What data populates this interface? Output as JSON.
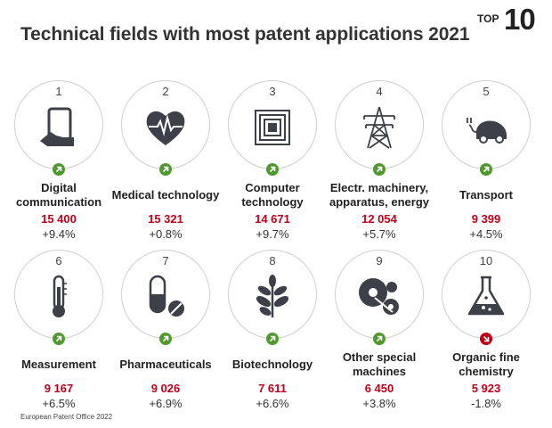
{
  "title": "Technical fields with most patent applications 2021",
  "badge": {
    "top_word": "TOP",
    "top_num": "10"
  },
  "source": "European Patent Office 2022",
  "colors": {
    "increase": "#4f9a2c",
    "decrease": "#c0001a",
    "value": "#c0001a",
    "icon": "#3d4048"
  },
  "chart_data": {
    "type": "table",
    "title": "Technical fields with most patent applications 2021",
    "fields": [
      {
        "rank": "1",
        "label": "Digital communication",
        "value": 15400,
        "value_text": "15 400",
        "change": 9.4,
        "change_text": "+9.4%",
        "trend": "up",
        "icon": "tablet-touch-icon"
      },
      {
        "rank": "2",
        "label": "Medical technology",
        "value": 15321,
        "value_text": "15 321",
        "change": 0.8,
        "change_text": "+0.8%",
        "trend": "up",
        "icon": "heart-pulse-icon"
      },
      {
        "rank": "3",
        "label": "Computer technology",
        "value": 14671,
        "value_text": "14 671",
        "change": 9.7,
        "change_text": "+9.7%",
        "trend": "up",
        "icon": "chip-icon"
      },
      {
        "rank": "4",
        "label": "Electr. machinery, apparatus, energy",
        "value": 12054,
        "value_text": "12 054",
        "change": 5.7,
        "change_text": "+5.7%",
        "trend": "up",
        "icon": "power-pylon-icon"
      },
      {
        "rank": "5",
        "label": "Transport",
        "value": 9399,
        "value_text": "9 399",
        "change": 4.5,
        "change_text": "+4.5%",
        "trend": "up",
        "icon": "electric-car-icon"
      },
      {
        "rank": "6",
        "label": "Measurement",
        "value": 9167,
        "value_text": "9 167",
        "change": 6.5,
        "change_text": "+6.5%",
        "trend": "up",
        "icon": "thermometer-icon"
      },
      {
        "rank": "7",
        "label": "Pharmaceuticals",
        "value": 9026,
        "value_text": "9 026",
        "change": 6.9,
        "change_text": "+6.9%",
        "trend": "up",
        "icon": "pills-icon"
      },
      {
        "rank": "8",
        "label": "Biotechnology",
        "value": 7611,
        "value_text": "7 611",
        "change": 6.6,
        "change_text": "+6.6%",
        "trend": "up",
        "icon": "leaf-icon"
      },
      {
        "rank": "9",
        "label": "Other special machines",
        "value": 6450,
        "value_text": "6 450",
        "change": 3.8,
        "change_text": "+3.8%",
        "trend": "up",
        "icon": "saw-blades-icon"
      },
      {
        "rank": "10",
        "label": "Organic fine chemistry",
        "value": 5923,
        "value_text": "5 923",
        "change": -1.8,
        "change_text": "-1.8%",
        "trend": "down",
        "icon": "flask-icon"
      }
    ]
  }
}
